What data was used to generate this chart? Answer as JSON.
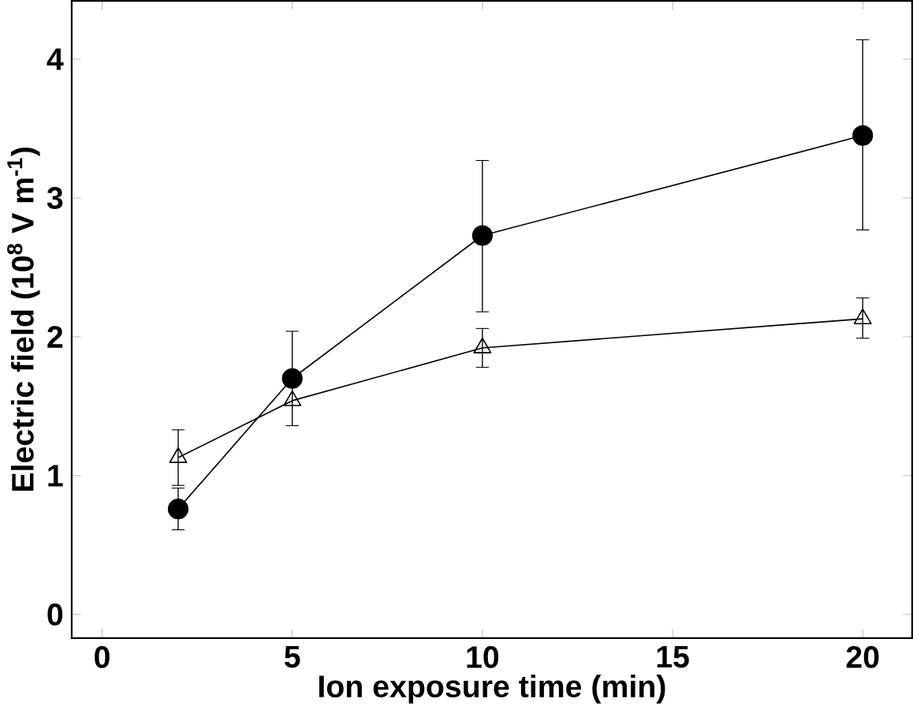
{
  "chart_data": {
    "type": "line",
    "xlabel": "Ion exposure time (min)",
    "ylabel": "Electric field (10$^{8}$ V m$^{-1}$)",
    "x": [
      2,
      5,
      10,
      20
    ],
    "series": [
      {
        "color": "#000000",
        "marker": "circle",
        "values": [
          0.76,
          1.7,
          2.73,
          3.45
        ],
        "errors": [
          [
            0.61,
            0.91
          ],
          [
            1.36,
            2.04
          ],
          [
            2.18,
            3.27
          ],
          [
            2.77,
            4.14
          ]
        ]
      },
      {
        "color": "#000000",
        "marker": "triangle",
        "values": [
          1.13,
          1.54,
          1.92,
          2.13
        ],
        "errors": [
          [
            0.93,
            1.33
          ],
          null,
          [
            1.78,
            2.06
          ],
          [
            1.99,
            2.28
          ]
        ]
      }
    ],
    "xlim": [
      -0.8,
      21.3
    ],
    "ylim": [
      -0.17,
      4.42
    ],
    "xticks": [
      0,
      5,
      10,
      15,
      20
    ],
    "yticks": [
      0,
      1,
      2,
      3,
      4
    ],
    "grid": false,
    "line_style": "solid"
  }
}
